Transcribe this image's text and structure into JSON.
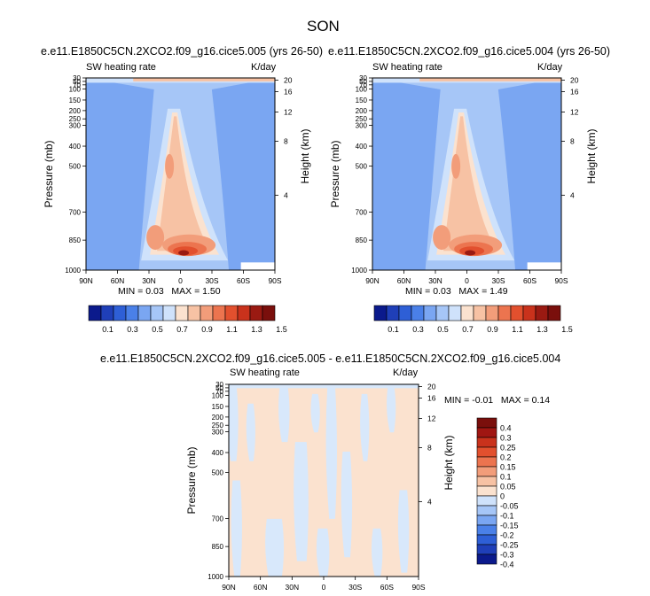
{
  "page_title": "SON",
  "chart_data": [
    {
      "type": "contour",
      "id": "panel1",
      "subtitle": "e.e11.E1850C5CN.2XCO2.f09_g16.cice5.005 (yrs 26-50)",
      "left_string": "SW heating rate",
      "right_string": "K/day",
      "ylabel": "Pressure (mb)",
      "ylabel_right": "Height (km)",
      "x_ticks": [
        "90N",
        "60N",
        "30N",
        "0",
        "30S",
        "60S",
        "90S"
      ],
      "y_ticks": [
        "30",
        "50",
        "70",
        "100",
        "150",
        "200",
        "250",
        "300",
        "400",
        "500",
        "700",
        "850",
        "1000"
      ],
      "height_ticks": [
        "20",
        "16",
        "12",
        "8",
        "4"
      ],
      "min_label": "MIN =",
      "min": "0.03",
      "max_label": "MAX =",
      "max": "1.50",
      "colorbar_levels": [
        "0.1",
        "0.3",
        "0.5",
        "0.7",
        "0.9",
        "1.1",
        "1.3",
        "1.5"
      ]
    },
    {
      "type": "contour",
      "id": "panel2",
      "subtitle": "e.e11.E1850C5CN.2XCO2.f09_g16.cice5.004 (yrs 26-50)",
      "left_string": "SW heating rate",
      "right_string": "K/day",
      "ylabel": "Pressure (mb)",
      "ylabel_right": "Height (km)",
      "x_ticks": [
        "90N",
        "60N",
        "30N",
        "0",
        "30S",
        "60S",
        "90S"
      ],
      "y_ticks": [
        "30",
        "50",
        "70",
        "100",
        "150",
        "200",
        "250",
        "300",
        "400",
        "500",
        "700",
        "850",
        "1000"
      ],
      "height_ticks": [
        "20",
        "16",
        "12",
        "8",
        "4"
      ],
      "min_label": "MIN =",
      "min": "0.03",
      "max_label": "MAX =",
      "max": "1.49",
      "colorbar_levels": [
        "0.1",
        "0.3",
        "0.5",
        "0.7",
        "0.9",
        "1.1",
        "1.3",
        "1.5"
      ]
    },
    {
      "type": "contour",
      "id": "panel3",
      "subtitle": "e.e11.E1850C5CN.2XCO2.f09_g16.cice5.005 - e.e11.E1850C5CN.2XCO2.f09_g16.cice5.004",
      "left_string": "SW heating rate",
      "right_string": "K/day",
      "ylabel": "Pressure (mb)",
      "ylabel_right": "Height (km)",
      "x_ticks": [
        "90N",
        "60N",
        "30N",
        "0",
        "30S",
        "60S",
        "90S"
      ],
      "y_ticks": [
        "30",
        "50",
        "70",
        "100",
        "150",
        "200",
        "250",
        "300",
        "400",
        "500",
        "700",
        "850",
        "1000"
      ],
      "height_ticks": [
        "20",
        "16",
        "12",
        "8",
        "4"
      ],
      "min_label": "MIN =",
      "min": "-0.01",
      "max_label": "MAX =",
      "max": "0.14",
      "colorbar_levels": [
        "0.4",
        "0.3",
        "0.25",
        "0.2",
        "0.15",
        "0.1",
        "0.05",
        "0",
        "-0.05",
        "-0.1",
        "-0.15",
        "-0.2",
        "-0.25",
        "-0.3",
        "-0.4"
      ]
    }
  ],
  "colors": {
    "abs_scale": [
      "#0b1a8c",
      "#1f3fb8",
      "#2e5fd6",
      "#4a80e8",
      "#7aa6f2",
      "#a6c6f7",
      "#cfe2fb",
      "#fbe2cf",
      "#f7c2a4",
      "#f29d7a",
      "#ec744f",
      "#e2502e",
      "#c9321c",
      "#9a1a12",
      "#7a0f0c"
    ],
    "diff_scale": [
      "#7a0f0c",
      "#a01612",
      "#c9321c",
      "#e2502e",
      "#ec744f",
      "#f29d7a",
      "#f7c2a4",
      "#fbe2cf",
      "#cfe2fb",
      "#a6c6f7",
      "#7aa6f2",
      "#4a80e8",
      "#2e5fd6",
      "#1f3fb8",
      "#0b1a8c"
    ]
  }
}
